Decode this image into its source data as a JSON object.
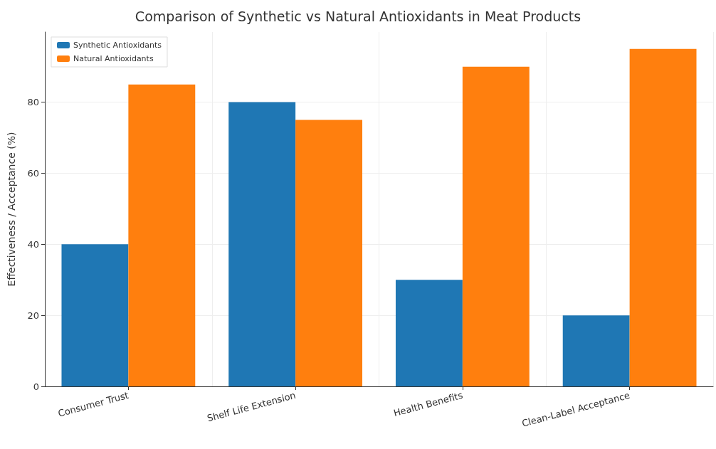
{
  "chart_data": {
    "type": "bar",
    "title": "Comparison of Synthetic vs Natural Antioxidants in Meat Products",
    "ylabel": "Effectiveness / Acceptance (%)",
    "categories": [
      "Consumer Trust",
      "Shelf Life Extension",
      "Health Benefits",
      "Clean-Label Acceptance"
    ],
    "series": [
      {
        "name": "Synthetic Antioxidants",
        "color": "#1f77b4",
        "values": [
          40,
          80,
          30,
          20
        ]
      },
      {
        "name": "Natural Antioxidants",
        "color": "#ff7f0e",
        "values": [
          85,
          75,
          90,
          95
        ]
      }
    ],
    "ylim": [
      0,
      99.75
    ],
    "yticks": [
      0,
      20,
      40,
      60,
      80
    ],
    "grid": true,
    "legend": "top left"
  }
}
